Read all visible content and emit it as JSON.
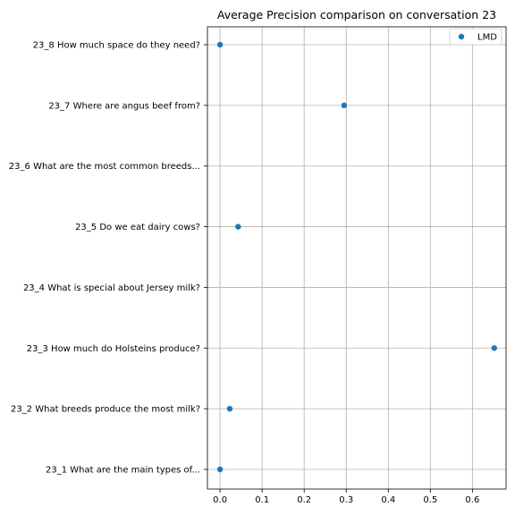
{
  "chart_data": {
    "type": "scatter",
    "title": "Average Precision comparison on conversation 23",
    "xlabel": "",
    "ylabel": "",
    "xlim": [
      -0.03,
      0.68
    ],
    "x_ticks": [
      0.0,
      0.1,
      0.2,
      0.3,
      0.4,
      0.5,
      0.6
    ],
    "x_tick_labels": [
      "0.0",
      "0.1",
      "0.2",
      "0.3",
      "0.4",
      "0.5",
      "0.6"
    ],
    "categories": [
      "23_1 What are the main types of...",
      "23_2 What breeds produce the most milk?",
      "23_3 How much do Holsteins produce?",
      "23_4 What is special about Jersey milk?",
      "23_5 Do we eat dairy cows?",
      "23_6 What are the most common breeds...",
      "23_7 Where are angus beef from?",
      "23_8 How much space do they need?"
    ],
    "grid": true,
    "legend_position": "top-right",
    "series": [
      {
        "name": "LMD",
        "color": "#1f77b4",
        "points": [
          {
            "category": "23_1 What are the main types of...",
            "x": 0.0
          },
          {
            "category": "23_2 What breeds produce the most milk?",
            "x": 0.023
          },
          {
            "category": "23_3 How much do Holsteins produce?",
            "x": 0.652
          },
          {
            "category": "23_5 Do we eat dairy cows?",
            "x": 0.043
          },
          {
            "category": "23_7 Where are angus beef from?",
            "x": 0.295
          },
          {
            "category": "23_8 How much space do they need?",
            "x": 0.0
          }
        ]
      }
    ]
  }
}
